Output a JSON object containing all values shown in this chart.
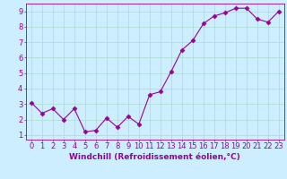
{
  "x": [
    0,
    1,
    2,
    3,
    4,
    5,
    6,
    7,
    8,
    9,
    10,
    11,
    12,
    13,
    14,
    15,
    16,
    17,
    18,
    19,
    20,
    21,
    22,
    23
  ],
  "y": [
    3.1,
    2.4,
    2.7,
    2.0,
    2.7,
    1.2,
    1.3,
    2.1,
    1.5,
    2.2,
    1.7,
    3.6,
    3.8,
    5.1,
    6.5,
    7.1,
    8.2,
    8.7,
    8.9,
    9.2,
    9.2,
    8.5,
    8.3,
    9.0
  ],
  "xlabel": "Windchill (Refroidissement éolien,°C)",
  "xlim_min": -0.5,
  "xlim_max": 23.5,
  "ylim_min": 0.7,
  "ylim_max": 9.5,
  "yticks": [
    1,
    2,
    3,
    4,
    5,
    6,
    7,
    8,
    9
  ],
  "xticks": [
    0,
    1,
    2,
    3,
    4,
    5,
    6,
    7,
    8,
    9,
    10,
    11,
    12,
    13,
    14,
    15,
    16,
    17,
    18,
    19,
    20,
    21,
    22,
    23
  ],
  "line_color": "#990099",
  "marker": "D",
  "marker_size": 2.5,
  "bg_color": "#cceeff",
  "grid_color": "#aaddcc",
  "xlabel_fontsize": 6.5,
  "tick_fontsize": 6,
  "linewidth": 0.8
}
